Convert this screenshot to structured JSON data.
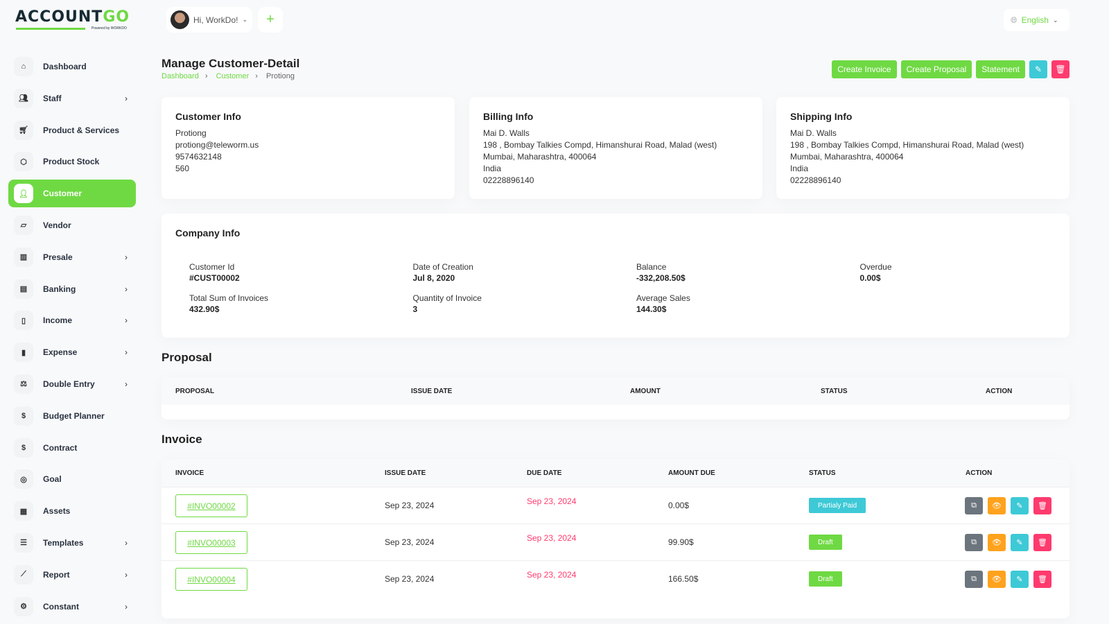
{
  "brand": {
    "name_a": "ACCOUNT",
    "name_b": "GO",
    "powered": "Powered by WORKDO"
  },
  "header": {
    "greeting": "Hi, WorkDo!",
    "language": "English"
  },
  "sidebar": {
    "items": [
      {
        "label": "Dashboard",
        "icon": "home-icon",
        "chev": false
      },
      {
        "label": "Staff",
        "icon": "users-icon",
        "chev": true
      },
      {
        "label": "Product & Services",
        "icon": "cart-icon",
        "chev": false
      },
      {
        "label": "Product Stock",
        "icon": "box-icon",
        "chev": false
      },
      {
        "label": "Customer",
        "icon": "user-plus-icon",
        "chev": false,
        "active": true
      },
      {
        "label": "Vendor",
        "icon": "note-icon",
        "chev": false
      },
      {
        "label": "Presale",
        "icon": "building-icon",
        "chev": true
      },
      {
        "label": "Banking",
        "icon": "bank-icon",
        "chev": true
      },
      {
        "label": "Income",
        "icon": "file-icon",
        "chev": true
      },
      {
        "label": "Expense",
        "icon": "receipt-icon",
        "chev": true
      },
      {
        "label": "Double Entry",
        "icon": "scale-icon",
        "chev": true
      },
      {
        "label": "Budget Planner",
        "icon": "coins-icon",
        "chev": false
      },
      {
        "label": "Contract",
        "icon": "coins-icon",
        "chev": false
      },
      {
        "label": "Goal",
        "icon": "target-icon",
        "chev": false
      },
      {
        "label": "Assets",
        "icon": "calculator-icon",
        "chev": false
      },
      {
        "label": "Templates",
        "icon": "template-icon",
        "chev": true
      },
      {
        "label": "Report",
        "icon": "chart-icon",
        "chev": true
      },
      {
        "label": "Constant",
        "icon": "settings-icon",
        "chev": true
      }
    ]
  },
  "page": {
    "title": "Manage Customer-Detail",
    "breadcrumb": [
      "Dashboard",
      "Customer",
      "Protiong"
    ]
  },
  "actions": {
    "create_invoice": "Create Invoice",
    "create_proposal": "Create Proposal",
    "statement": "Statement"
  },
  "customer_info": {
    "title": "Customer Info",
    "lines": [
      "Protiong",
      "protiong@teleworm.us",
      "9574632148",
      "560"
    ]
  },
  "billing_info": {
    "title": "Billing Info",
    "lines": [
      "Mai D. Walls",
      "198 , Bombay Talkies Compd, Himanshurai Road, Malad (west)",
      "Mumbai, Maharashtra, 400064",
      "India",
      "02228896140"
    ]
  },
  "shipping_info": {
    "title": "Shipping Info",
    "lines": [
      "Mai D. Walls",
      "198 , Bombay Talkies Compd, Himanshurai Road, Malad (west)",
      "Mumbai, Maharashtra, 400064",
      "India",
      "02228896140"
    ]
  },
  "company_info": {
    "title": "Company Info",
    "fields": [
      {
        "label": "Customer Id",
        "value": "#CUST00002"
      },
      {
        "label": "Date of Creation",
        "value": "Jul 8, 2020"
      },
      {
        "label": "Balance",
        "value": "-332,208.50$"
      },
      {
        "label": "Overdue",
        "value": "0.00$"
      },
      {
        "label": "Total Sum of Invoices",
        "value": "432.90$"
      },
      {
        "label": "Quantity of Invoice",
        "value": "3"
      },
      {
        "label": "Average Sales",
        "value": "144.30$"
      }
    ]
  },
  "proposal": {
    "title": "Proposal",
    "columns": [
      "PROPOSAL",
      "ISSUE DATE",
      "AMOUNT",
      "STATUS",
      "ACTION"
    ]
  },
  "invoice": {
    "title": "Invoice",
    "columns": [
      "INVOICE",
      "ISSUE DATE",
      "DUE DATE",
      "AMOUNT DUE",
      "STATUS",
      "ACTION"
    ],
    "rows": [
      {
        "id": "#INVO00002",
        "issue": "Sep 23, 2024",
        "due": "Sep 23, 2024",
        "amount": "0.00$",
        "status": "Partialy Paid",
        "status_color": "#3ec9d6"
      },
      {
        "id": "#INVO00003",
        "issue": "Sep 23, 2024",
        "due": "Sep 23, 2024",
        "amount": "99.90$",
        "status": "Draft",
        "status_color": "#6fd943"
      },
      {
        "id": "#INVO00004",
        "issue": "Sep 23, 2024",
        "due": "Sep 23, 2024",
        "amount": "166.50$",
        "status": "Draft",
        "status_color": "#6fd943"
      }
    ]
  },
  "colors": {
    "accent": "#6fd943",
    "info": "#3ec9d6",
    "warning": "#ffa21d",
    "danger": "#ff3a6e",
    "secondary": "#6c757d",
    "due_date": "#ff3a6e"
  }
}
